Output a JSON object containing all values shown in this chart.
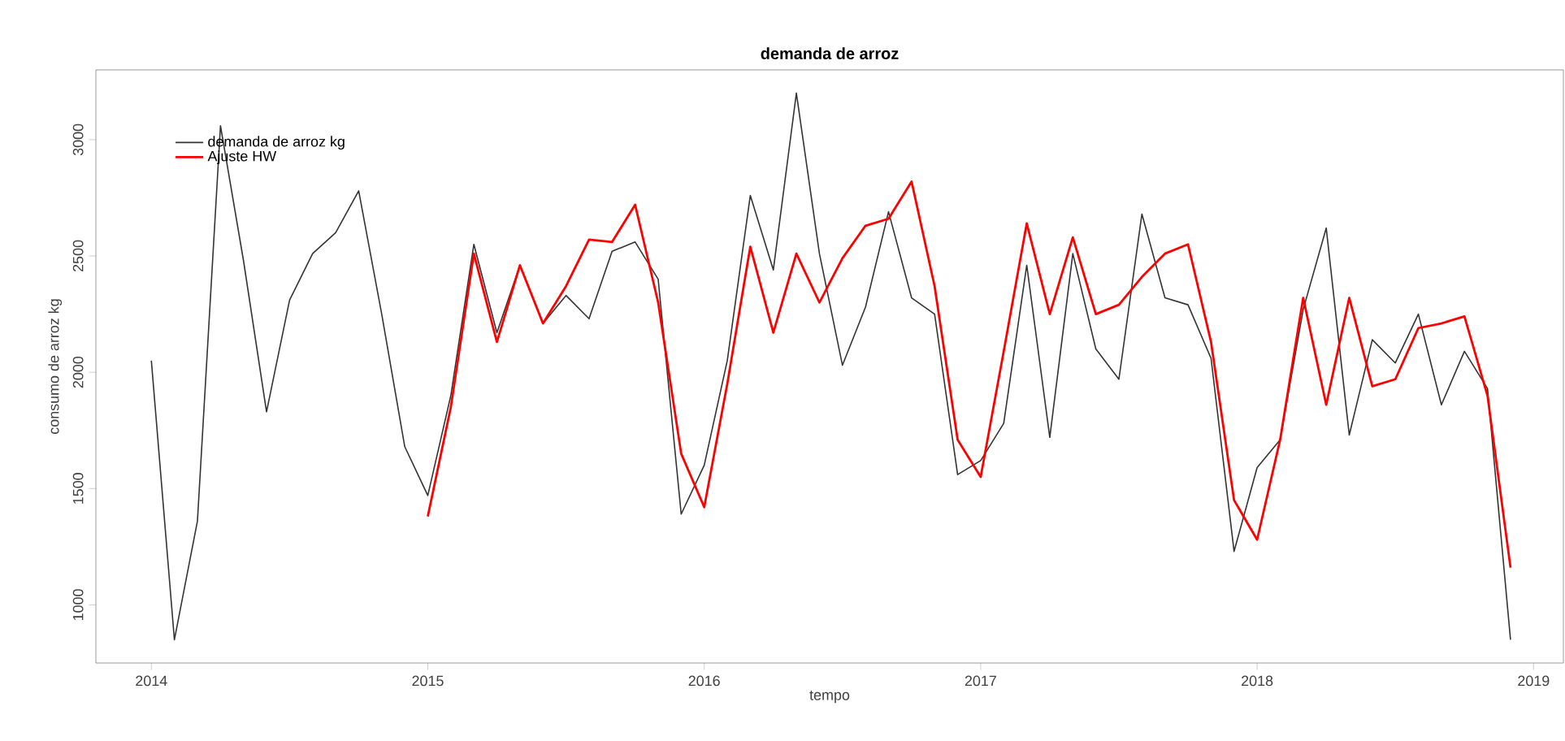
{
  "chart_data": {
    "type": "line",
    "title": "demanda de arroz",
    "xlabel": "tempo",
    "ylabel": "consumo de arroz kg",
    "xlim": [
      "2013-10-19",
      "2019-02-10"
    ],
    "ylim": [
      750,
      3300
    ],
    "xticks": [
      {
        "value": "2014-01-01",
        "label": "2014"
      },
      {
        "value": "2015-01-01",
        "label": "2015"
      },
      {
        "value": "2016-01-01",
        "label": "2016"
      },
      {
        "value": "2017-01-01",
        "label": "2017"
      },
      {
        "value": "2018-01-01",
        "label": "2018"
      },
      {
        "value": "2019-01-01",
        "label": "2019"
      }
    ],
    "yticks": [
      1000,
      1500,
      2000,
      2500,
      3000
    ],
    "legend": "top left",
    "grid": false,
    "marker": "none",
    "line_style": "solid",
    "series": [
      {
        "name": "demanda de arroz kg",
        "color": "#333333",
        "x": [
          "2014-01",
          "2014-02",
          "2014-03",
          "2014-04",
          "2014-05",
          "2014-06",
          "2014-07",
          "2014-08",
          "2014-09",
          "2014-10",
          "2014-11",
          "2014-12",
          "2015-01",
          "2015-02",
          "2015-03",
          "2015-04",
          "2015-05",
          "2015-06",
          "2015-07",
          "2015-08",
          "2015-09",
          "2015-10",
          "2015-11",
          "2015-12",
          "2016-01",
          "2016-02",
          "2016-03",
          "2016-04",
          "2016-05",
          "2016-06",
          "2016-07",
          "2016-08",
          "2016-09",
          "2016-10",
          "2016-11",
          "2016-12",
          "2017-01",
          "2017-02",
          "2017-03",
          "2017-04",
          "2017-05",
          "2017-06",
          "2017-07",
          "2017-08",
          "2017-09",
          "2017-10",
          "2017-11",
          "2017-12",
          "2018-01",
          "2018-02",
          "2018-03",
          "2018-04",
          "2018-05",
          "2018-06",
          "2018-07",
          "2018-08",
          "2018-09",
          "2018-10",
          "2018-11",
          "2018-12"
        ],
        "values": [
          2050,
          850,
          1360,
          3060,
          2480,
          1830,
          2310,
          2510,
          2600,
          2780,
          2250,
          1680,
          1470,
          1900,
          2550,
          2170,
          2460,
          2210,
          2330,
          2230,
          2520,
          2560,
          2400,
          1390,
          1600,
          2050,
          2760,
          2440,
          3200,
          2510,
          2030,
          2280,
          2690,
          2320,
          2250,
          1560,
          1620,
          1780,
          2460,
          1720,
          2510,
          2100,
          1970,
          2680,
          2320,
          2290,
          2060,
          1230,
          1590,
          1710,
          2270,
          2620,
          1730,
          2140,
          2040,
          2250,
          1860,
          2090,
          1930,
          850
        ]
      },
      {
        "name": "Ajuste HW",
        "color": "#ff0000",
        "x": [
          "2015-01",
          "2015-02",
          "2015-03",
          "2015-04",
          "2015-05",
          "2015-06",
          "2015-07",
          "2015-08",
          "2015-09",
          "2015-10",
          "2015-11",
          "2015-12",
          "2016-01",
          "2016-02",
          "2016-03",
          "2016-04",
          "2016-05",
          "2016-06",
          "2016-07",
          "2016-08",
          "2016-09",
          "2016-10",
          "2016-11",
          "2016-12",
          "2017-01",
          "2017-02",
          "2017-03",
          "2017-04",
          "2017-05",
          "2017-06",
          "2017-07",
          "2017-08",
          "2017-09",
          "2017-10",
          "2017-11",
          "2017-12",
          "2018-01",
          "2018-02",
          "2018-03",
          "2018-04",
          "2018-05",
          "2018-06",
          "2018-07",
          "2018-08",
          "2018-09",
          "2018-10",
          "2018-11",
          "2018-12"
        ],
        "values": [
          1380,
          1850,
          2510,
          2130,
          2460,
          2210,
          2370,
          2570,
          2560,
          2720,
          2300,
          1650,
          1420,
          1950,
          2540,
          2170,
          2510,
          2300,
          2490,
          2630,
          2660,
          2820,
          2370,
          1710,
          1550,
          2090,
          2640,
          2250,
          2580,
          2250,
          2290,
          2410,
          2510,
          2550,
          2130,
          1450,
          1280,
          1710,
          2320,
          1860,
          2320,
          1940,
          1970,
          2190,
          2210,
          2240,
          1900,
          1160
        ]
      }
    ]
  }
}
